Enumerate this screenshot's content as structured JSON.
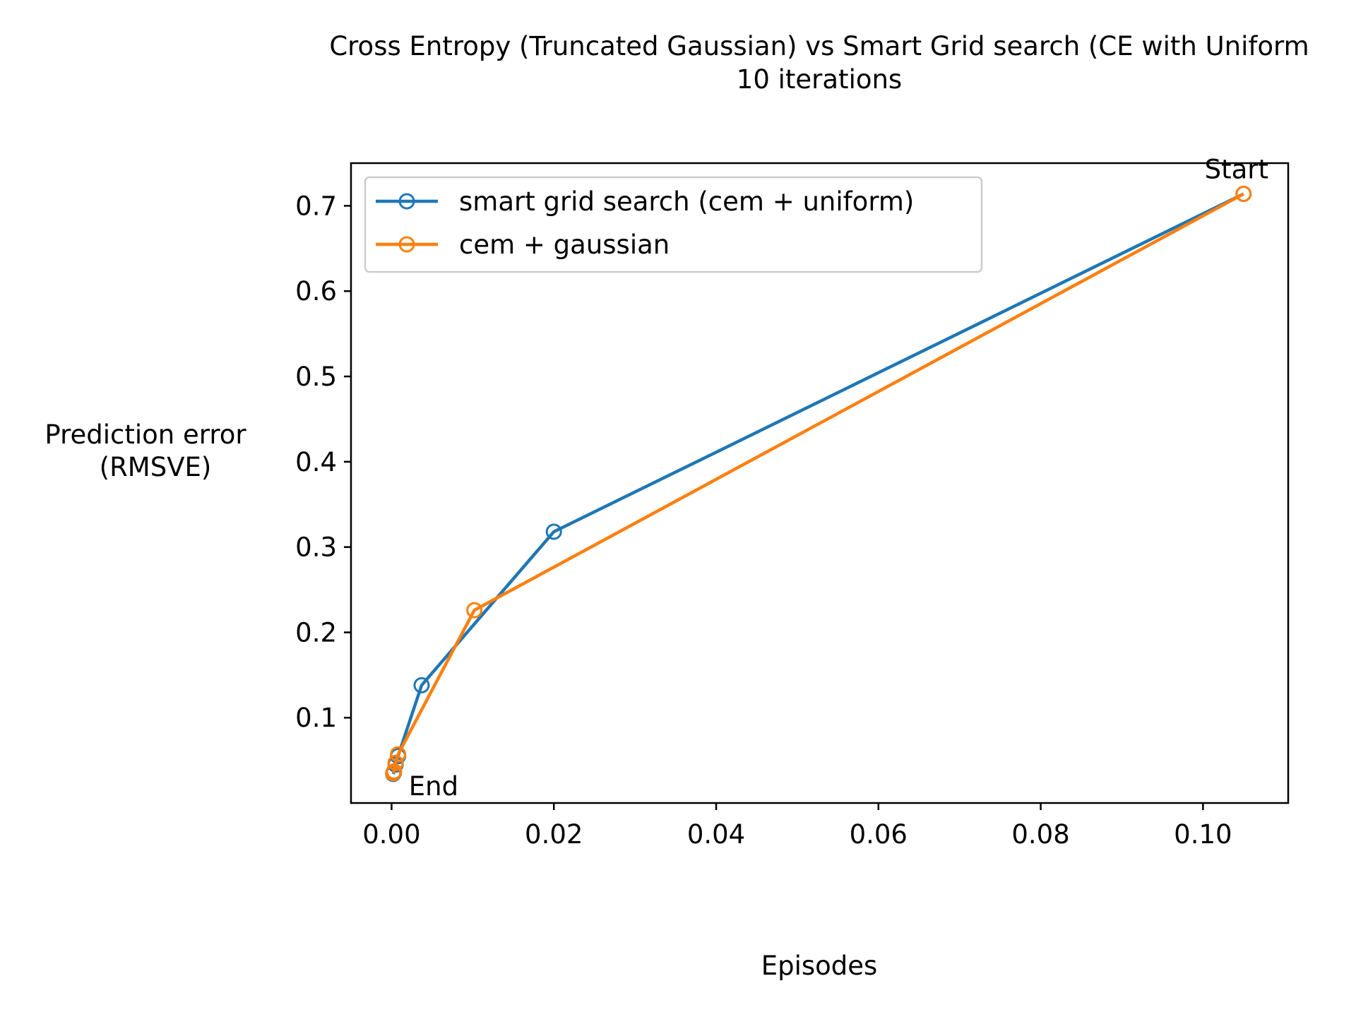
{
  "chart_data": {
    "type": "line",
    "title": "Cross Entropy (Truncated Gaussian) vs Smart Grid search (CE with Uniform",
    "subtitle": "10 iterations",
    "xlabel": "Episodes",
    "ylabel_lines": [
      "Prediction error",
      "(RMSVE)"
    ],
    "xlim": [
      -0.005,
      0.1105
    ],
    "ylim": [
      0.0,
      0.75
    ],
    "x_ticks": [
      {
        "value": 0.0,
        "label": "0.00"
      },
      {
        "value": 0.02,
        "label": "0.02"
      },
      {
        "value": 0.04,
        "label": "0.04"
      },
      {
        "value": 0.06,
        "label": "0.06"
      },
      {
        "value": 0.08,
        "label": "0.08"
      },
      {
        "value": 0.1,
        "label": "0.10"
      }
    ],
    "y_ticks": [
      {
        "value": 0.1,
        "label": "0.1"
      },
      {
        "value": 0.2,
        "label": "0.2"
      },
      {
        "value": 0.3,
        "label": "0.3"
      },
      {
        "value": 0.4,
        "label": "0.4"
      },
      {
        "value": 0.5,
        "label": "0.5"
      },
      {
        "value": 0.6,
        "label": "0.6"
      },
      {
        "value": 0.7,
        "label": "0.7"
      }
    ],
    "grid": false,
    "legend_position": "upper-left",
    "series": [
      {
        "name": "smart grid search (cem + uniform)",
        "color": "#1f77b4",
        "marker": "hollow-circle",
        "x": [
          0.105,
          0.02,
          0.0037,
          0.0008,
          0.0005,
          0.0003,
          0.0002
        ],
        "y": [
          0.714,
          0.318,
          0.138,
          0.055,
          0.045,
          0.036,
          0.034
        ]
      },
      {
        "name": "cem + gaussian",
        "color": "#ff7f0e",
        "marker": "hollow-circle",
        "x": [
          0.105,
          0.0102,
          0.0008,
          0.0005,
          0.0003,
          0.0002
        ],
        "y": [
          0.714,
          0.226,
          0.057,
          0.047,
          0.037,
          0.035
        ]
      }
    ],
    "annotations": [
      {
        "text": "Start",
        "x": 0.105,
        "y": 0.714
      },
      {
        "text": "End",
        "x": 0.0002,
        "y": 0.034
      }
    ]
  }
}
